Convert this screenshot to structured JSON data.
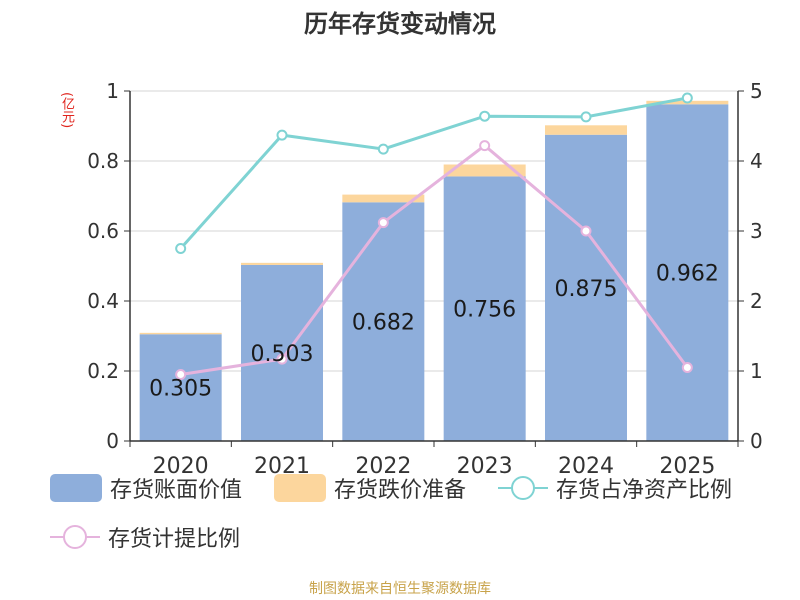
{
  "title": "历年存货变动情况",
  "source": "制图数据来自恒生聚源数据库",
  "chart_data": {
    "type": "bar",
    "title": "历年存货变动情况",
    "categories": [
      "2020",
      "2021",
      "2022",
      "2023",
      "2024",
      "2025"
    ],
    "y_left": {
      "unit_label": "(亿元)",
      "range": [
        0,
        1
      ],
      "ticks": [
        "0",
        "0.2",
        "0.4",
        "0.6",
        "0.8",
        "1"
      ]
    },
    "y_right": {
      "range": [
        0,
        5
      ],
      "ticks": [
        "0",
        "1",
        "2",
        "3",
        "4",
        "5"
      ]
    },
    "series": [
      {
        "name": "存货账面价值",
        "kind": "bar-stack",
        "axis": "left",
        "color": "#8eaedb",
        "values": [
          0.305,
          0.503,
          0.682,
          0.756,
          0.875,
          0.962
        ],
        "labels": [
          "0.305",
          "0.503",
          "0.682",
          "0.756",
          "0.875",
          "0.962"
        ]
      },
      {
        "name": "存货跌价准备",
        "kind": "bar-stack",
        "axis": "left",
        "color": "#fcd69d",
        "values": [
          0.004,
          0.006,
          0.022,
          0.034,
          0.027,
          0.01
        ]
      },
      {
        "name": "存货占净资产比例",
        "kind": "line",
        "axis": "right",
        "color": "#7fd3d3",
        "values": [
          2.75,
          4.37,
          4.17,
          4.64,
          4.63,
          4.9
        ]
      },
      {
        "name": "存货计提比例",
        "kind": "line",
        "axis": "right",
        "color": "#e5b3dd",
        "values": [
          0.95,
          1.17,
          3.12,
          4.22,
          3.0,
          1.05
        ]
      }
    ],
    "legend_position": "bottom",
    "grid": true
  }
}
